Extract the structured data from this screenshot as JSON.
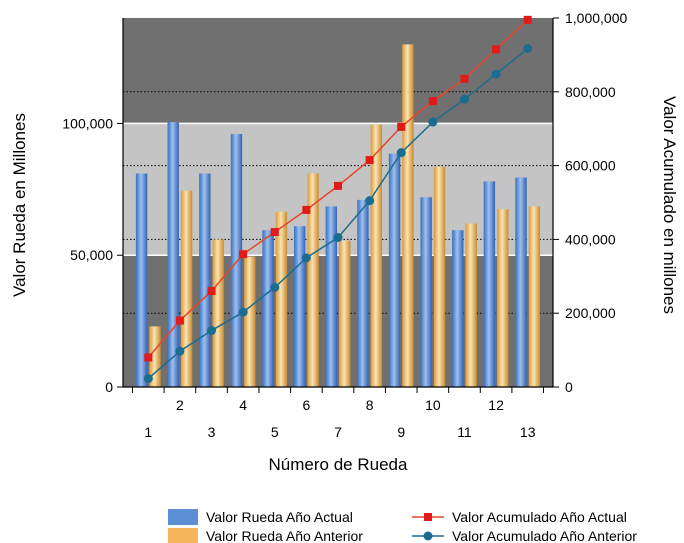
{
  "chart_data": {
    "type": "bar",
    "title": "",
    "xlabel": "Número de Rueda",
    "ylabel_left": "Valor Rueda en Millones",
    "ylabel_right": "Valor Acumulado en millones",
    "categories": [
      "1",
      "2",
      "3",
      "4",
      "5",
      "6",
      "7",
      "8",
      "9",
      "10",
      "11",
      "12",
      "13"
    ],
    "x_ticks_upper": [
      "2",
      "4",
      "6",
      "8",
      "10",
      "12"
    ],
    "x_ticks_lower": [
      "1",
      "3",
      "5",
      "7",
      "9",
      "11",
      "13"
    ],
    "ylim_left": [
      0,
      140000
    ],
    "yticks_left": [
      "0",
      "50,000",
      "100,000"
    ],
    "ylim_right": [
      0,
      1000000
    ],
    "yticks_right": [
      "0",
      "200,000",
      "400,000",
      "600,000",
      "800,000",
      "1,000,000"
    ],
    "bar_series": [
      {
        "name": "Valor Rueda Año Actual",
        "color": "#5b8fd6",
        "values": [
          81000,
          100500,
          81000,
          96000,
          59500,
          61000,
          68500,
          71000,
          88500,
          72000,
          59500,
          78000,
          79500
        ]
      },
      {
        "name": "Valor Rueda Año Anterior",
        "color": "#f5b55a",
        "values": [
          23000,
          74500,
          56000,
          49500,
          66500,
          81000,
          55500,
          99500,
          130000,
          83500,
          62000,
          67500,
          68500
        ]
      }
    ],
    "line_series": [
      {
        "name": "Valor Acumulado Año Actual",
        "color": "#e8452c",
        "marker": "square",
        "values": [
          80000,
          180000,
          260000,
          360000,
          420000,
          480000,
          545000,
          615000,
          705000,
          775000,
          835000,
          915000,
          995000
        ]
      },
      {
        "name": "Valor Acumulado Año Anterior",
        "color": "#1b6d8f",
        "marker": "circle",
        "values": [
          23000,
          97000,
          153000,
          203000,
          270000,
          350000,
          405000,
          505000,
          635000,
          718000,
          780000,
          848000,
          917000
        ]
      }
    ],
    "background_bands": {
      "dark": "#707070",
      "light": "#c4c4c4",
      "light_band_range_left": [
        50000,
        100000
      ]
    },
    "grid": true,
    "legend_position": "bottom"
  }
}
